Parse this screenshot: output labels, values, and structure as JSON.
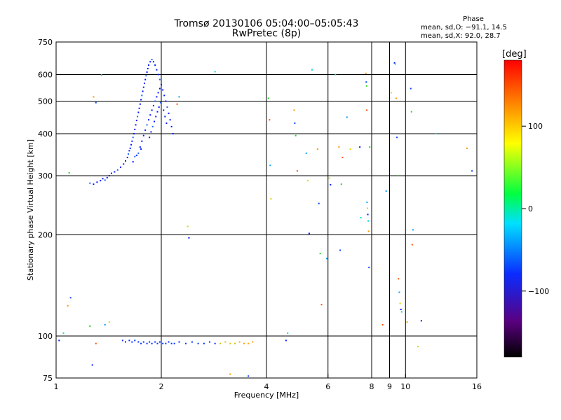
{
  "header": {
    "title_line1": "Tromsø 20130106 05:04:00–05:05:43",
    "title_line2": "RwPretec (8p)"
  },
  "stats": {
    "heading": "Phase",
    "line_o": "mean, sd,O: −91.1, 14.5",
    "line_x": "mean, sd,X:  92.0, 28.7"
  },
  "colorbar": {
    "unit_label": "[deg]",
    "ticks": [
      "100",
      "0",
      "−100"
    ],
    "tick_values": [
      100,
      0,
      -100
    ],
    "range": [
      -180,
      180
    ]
  },
  "chart_data": {
    "type": "scatter",
    "title": "Tromsø 20130106 05:04:00–05:05:43",
    "subtitle": "RwPretec (8p)",
    "xlabel": "Frequency [MHz]",
    "ylabel": "Stationary phase Virtual Height [km]",
    "x_scale": "log",
    "y_scale": "log",
    "xlim": [
      1,
      16
    ],
    "ylim": [
      75,
      750
    ],
    "x_ticks": [
      1,
      2,
      4,
      6,
      8,
      10,
      16
    ],
    "x_minor_ticks": [
      9
    ],
    "y_ticks": [
      75,
      100,
      200,
      300,
      400,
      500,
      600,
      750
    ],
    "x_gridlines": [
      2,
      4,
      6,
      8,
      10
    ],
    "y_gridlines": [
      100,
      200,
      300,
      400,
      500,
      600
    ],
    "grid": true,
    "color_scale": "phase [deg], rainbow from black (-180) through blue, cyan, green, yellow to red (180)",
    "ionogram_trace_F_region": {
      "description": "dense blue (phase about -100 deg) echoes",
      "points": [
        [
          1.25,
          285
        ],
        [
          1.28,
          283
        ],
        [
          1.31,
          287
        ],
        [
          1.34,
          290
        ],
        [
          1.36,
          294
        ],
        [
          1.38,
          291
        ],
        [
          1.4,
          296
        ],
        [
          1.42,
          300
        ],
        [
          1.44,
          305
        ],
        [
          1.47,
          308
        ],
        [
          1.5,
          312
        ],
        [
          1.53,
          318
        ],
        [
          1.56,
          325
        ],
        [
          1.58,
          332
        ],
        [
          1.6,
          340
        ],
        [
          1.61,
          348
        ],
        [
          1.62,
          356
        ],
        [
          1.63,
          362
        ],
        [
          1.64,
          371
        ],
        [
          1.65,
          380
        ],
        [
          1.66,
          390
        ],
        [
          1.67,
          400
        ],
        [
          1.68,
          412
        ],
        [
          1.69,
          425
        ],
        [
          1.7,
          438
        ],
        [
          1.71,
          450
        ],
        [
          1.72,
          463
        ],
        [
          1.73,
          476
        ],
        [
          1.74,
          490
        ],
        [
          1.75,
          505
        ],
        [
          1.76,
          520
        ],
        [
          1.77,
          535
        ],
        [
          1.78,
          550
        ],
        [
          1.79,
          565
        ],
        [
          1.8,
          580
        ],
        [
          1.81,
          595
        ],
        [
          1.82,
          610
        ],
        [
          1.83,
          625
        ],
        [
          1.84,
          640
        ],
        [
          1.86,
          655
        ],
        [
          1.88,
          665
        ],
        [
          1.9,
          655
        ],
        [
          1.92,
          640
        ],
        [
          1.94,
          620
        ],
        [
          1.96,
          600
        ],
        [
          1.98,
          580
        ],
        [
          2.0,
          560
        ],
        [
          2.02,
          540
        ],
        [
          2.04,
          520
        ],
        [
          2.06,
          500
        ],
        [
          2.08,
          480
        ],
        [
          2.1,
          460
        ],
        [
          2.12,
          440
        ],
        [
          2.14,
          420
        ],
        [
          2.16,
          400
        ],
        [
          1.72,
          350
        ],
        [
          1.74,
          365
        ],
        [
          1.76,
          380
        ],
        [
          1.78,
          395
        ],
        [
          1.8,
          410
        ],
        [
          1.82,
          425
        ],
        [
          1.84,
          440
        ],
        [
          1.86,
          455
        ],
        [
          1.88,
          470
        ],
        [
          1.9,
          485
        ],
        [
          1.92,
          500
        ],
        [
          1.94,
          515
        ],
        [
          1.96,
          530
        ],
        [
          1.98,
          545
        ],
        [
          1.66,
          330
        ],
        [
          1.68,
          342
        ],
        [
          1.7,
          345
        ],
        [
          1.75,
          360
        ],
        [
          1.85,
          390
        ],
        [
          1.87,
          405
        ],
        [
          1.89,
          420
        ],
        [
          1.91,
          435
        ],
        [
          1.93,
          450
        ],
        [
          1.95,
          465
        ],
        [
          1.97,
          480
        ],
        [
          1.99,
          495
        ],
        [
          2.03,
          470
        ],
        [
          2.05,
          450
        ],
        [
          2.07,
          430
        ]
      ]
    },
    "ionogram_trace_E_region": {
      "description": "blue echoes near 95 km, turning yellow/orange above ~3 MHz",
      "points": [
        [
          1.55,
          97
        ],
        [
          1.58,
          96
        ],
        [
          1.62,
          97
        ],
        [
          1.65,
          96
        ],
        [
          1.68,
          97
        ],
        [
          1.72,
          96
        ],
        [
          1.75,
          95
        ],
        [
          1.78,
          96
        ],
        [
          1.82,
          95
        ],
        [
          1.85,
          96
        ],
        [
          1.88,
          95
        ],
        [
          1.92,
          96
        ],
        [
          1.95,
          95
        ],
        [
          1.98,
          96
        ],
        [
          2.02,
          95
        ],
        [
          2.06,
          95
        ],
        [
          2.1,
          96
        ],
        [
          2.14,
          95
        ],
        [
          2.18,
          95
        ],
        [
          2.25,
          96
        ],
        [
          2.35,
          95
        ],
        [
          2.45,
          96
        ],
        [
          2.55,
          95
        ],
        [
          2.65,
          95
        ],
        [
          2.75,
          96
        ],
        [
          2.85,
          95
        ],
        [
          2.95,
          95
        ],
        [
          3.05,
          96
        ],
        [
          3.15,
          95
        ],
        [
          3.25,
          95
        ],
        [
          3.35,
          96
        ],
        [
          3.45,
          95
        ],
        [
          3.55,
          95
        ],
        [
          3.65,
          96
        ]
      ]
    },
    "scattered_points": [
      [
        1.02,
        97
      ],
      [
        1.05,
        102
      ],
      [
        1.08,
        123
      ],
      [
        1.1,
        130
      ],
      [
        1.25,
        107
      ],
      [
        1.3,
        95
      ],
      [
        1.38,
        108
      ],
      [
        1.42,
        110
      ],
      [
        1.27,
        82
      ],
      [
        1.35,
        598
      ],
      [
        1.28,
        515
      ],
      [
        1.3,
        495
      ],
      [
        1.09,
        306
      ],
      [
        2.22,
        490
      ],
      [
        2.25,
        515
      ],
      [
        2.38,
        212
      ],
      [
        2.4,
        196
      ],
      [
        2.85,
        612
      ],
      [
        3.15,
        77
      ],
      [
        3.55,
        76
      ],
      [
        4.05,
        510
      ],
      [
        4.08,
        440
      ],
      [
        4.1,
        322
      ],
      [
        4.12,
        256
      ],
      [
        4.55,
        97
      ],
      [
        4.6,
        102
      ],
      [
        4.8,
        470
      ],
      [
        4.82,
        430
      ],
      [
        4.85,
        395
      ],
      [
        4.9,
        310
      ],
      [
        5.2,
        350
      ],
      [
        5.25,
        290
      ],
      [
        5.3,
        202
      ],
      [
        5.4,
        620
      ],
      [
        5.6,
        360
      ],
      [
        5.65,
        248
      ],
      [
        5.7,
        176
      ],
      [
        5.75,
        124
      ],
      [
        5.95,
        170
      ],
      [
        6.05,
        295
      ],
      [
        6.1,
        282
      ],
      [
        6.3,
        600
      ],
      [
        6.45,
        365
      ],
      [
        6.5,
        180
      ],
      [
        6.55,
        283
      ],
      [
        6.6,
        340
      ],
      [
        6.8,
        448
      ],
      [
        6.95,
        360
      ],
      [
        7.4,
        365
      ],
      [
        7.45,
        225
      ],
      [
        7.7,
        605
      ],
      [
        7.72,
        570
      ],
      [
        7.74,
        555
      ],
      [
        7.75,
        470
      ],
      [
        7.76,
        250
      ],
      [
        7.78,
        240
      ],
      [
        7.8,
        230
      ],
      [
        7.82,
        220
      ],
      [
        7.84,
        205
      ],
      [
        7.86,
        160
      ],
      [
        7.9,
        365
      ],
      [
        8.6,
        108
      ],
      [
        8.8,
        270
      ],
      [
        9.1,
        530
      ],
      [
        9.3,
        650
      ],
      [
        9.35,
        645
      ],
      [
        9.4,
        510
      ],
      [
        9.45,
        390
      ],
      [
        9.5,
        300
      ],
      [
        9.55,
        148
      ],
      [
        9.6,
        135
      ],
      [
        9.65,
        125
      ],
      [
        9.7,
        120
      ],
      [
        9.75,
        118
      ],
      [
        10.1,
        110
      ],
      [
        10.35,
        545
      ],
      [
        10.4,
        465
      ],
      [
        10.45,
        187
      ],
      [
        10.5,
        207
      ],
      [
        10.85,
        93
      ],
      [
        11.1,
        111
      ],
      [
        12.2,
        400
      ],
      [
        15.0,
        362
      ],
      [
        15.5,
        310
      ]
    ]
  }
}
